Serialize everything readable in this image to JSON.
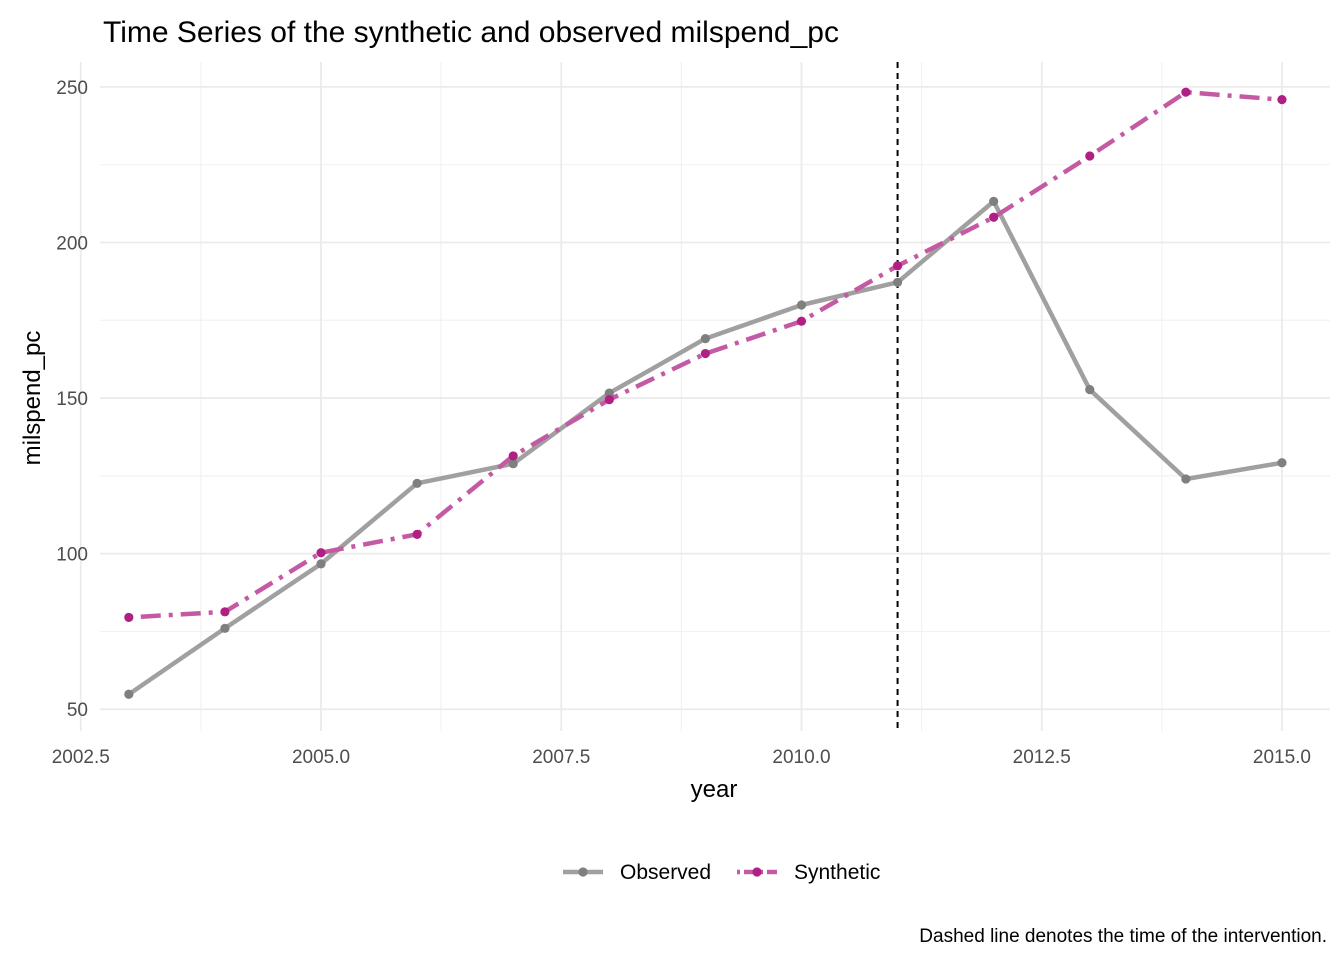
{
  "chart_data": {
    "type": "line",
    "title": "Time Series of the synthetic and observed milspend_pc",
    "xlabel": "year",
    "ylabel": "milspend_pc",
    "caption": "Dashed line denotes the time of the intervention.",
    "xlim": [
      2002.7,
      2015.5
    ],
    "ylim": [
      43,
      258
    ],
    "x_ticks": [
      2002.5,
      2005.0,
      2007.5,
      2010.0,
      2012.5,
      2015.0
    ],
    "x_tick_labels": [
      "2002.5",
      "2005.0",
      "2007.5",
      "2010.0",
      "2012.5",
      "2015.0"
    ],
    "y_ticks": [
      50,
      100,
      150,
      200,
      250
    ],
    "y_tick_labels": [
      "50",
      "100",
      "150",
      "200",
      "250"
    ],
    "grid": true,
    "legend_position": "bottom",
    "intervention_x": 2011,
    "x": [
      2003,
      2004,
      2005,
      2006,
      2007,
      2008,
      2009,
      2010,
      2011,
      2012,
      2013,
      2014,
      2015
    ],
    "series": [
      {
        "name": "Observed",
        "color": "#a0a0a0",
        "point_color": "#7f7f7f",
        "line_style": "solid",
        "values": [
          54.8,
          76.0,
          96.7,
          122.6,
          128.9,
          151.6,
          169.1,
          179.9,
          187.2,
          213.2,
          152.7,
          124.0,
          129.2
        ]
      },
      {
        "name": "Synthetic",
        "color": "#c45aa4",
        "point_color": "#b01f84",
        "line_style": "dotdash",
        "values": [
          79.5,
          81.3,
          100.3,
          106.2,
          131.4,
          149.5,
          164.3,
          174.7,
          192.5,
          208.1,
          227.8,
          248.3,
          245.9
        ]
      }
    ]
  }
}
